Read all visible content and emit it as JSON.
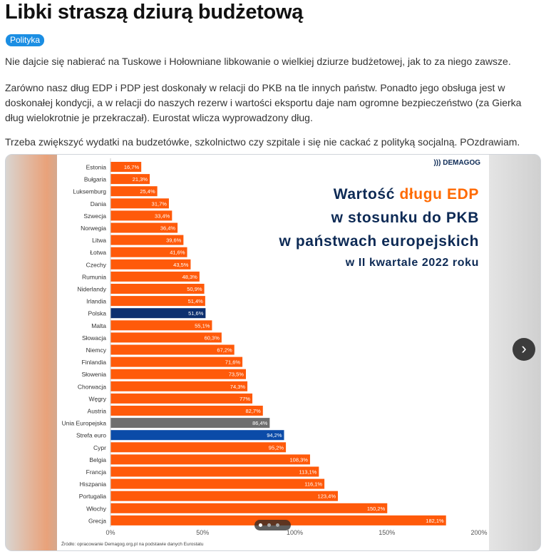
{
  "post": {
    "title": "Libki straszą dziurą budżetową",
    "tag": "Polityka",
    "paragraphs": [
      "Nie dajcie się nabierać na Tuskowe i Hołowniane libkowanie o wielkiej dziurze budżetowej, jak to za niego zawsze.",
      "Zarówno nasz dług EDP i PDP jest doskonały w relacji do PKB na tle innych państw. Ponadto jego obsługa jest w doskonałej kondycji, a w relacji do naszych rezerw i wartości eksportu daje nam ogromne bezpieczeństwo (za Gierka dług wielokrotnie je przekraczał). Eurostat wlicza wyprowadzony dług.",
      "Trzeba zwiększyć wydatki na budzetówke, szkolnictwo czy szpitale i się nie cackać z polityką socjalną. POzdrawiam."
    ]
  },
  "carousel": {
    "next_icon": "chevron-right-icon",
    "dots": 3,
    "active_dot": 0
  },
  "colors": {
    "accent_tag": "#1b8ee3",
    "bar_default": "#ff5a0a",
    "bar_poland": "#0d3070",
    "bar_eu": "#6e6e6e",
    "bar_eurozone": "#0b4ba8",
    "title_navy": "#0d2a55",
    "title_orange": "#ff6a00"
  },
  "chart_data": {
    "type": "bar",
    "orientation": "horizontal",
    "brand": "DEMAGOG",
    "title_lines": [
      [
        "Wartość ",
        "długu EDP"
      ],
      [
        "w stosunku do PKB",
        ""
      ],
      [
        "w państwach europejskich",
        ""
      ],
      [
        "w II kwartale 2022 roku",
        ""
      ]
    ],
    "categories": [
      "Estonia",
      "Bułgaria",
      "Luksemburg",
      "Dania",
      "Szwecja",
      "Norwegia",
      "Litwa",
      "Łotwa",
      "Czechy",
      "Rumunia",
      "Niderlandy",
      "Irlandia",
      "Polska",
      "Malta",
      "Słowacja",
      "Niemcy",
      "Finlandia",
      "Słowenia",
      "Chorwacja",
      "Węgry",
      "Austria",
      "Unia Europejska",
      "Strefa euro",
      "Cypr",
      "Belgia",
      "Francja",
      "Hiszpania",
      "Portugalia",
      "Włochy",
      "Grecja"
    ],
    "values": [
      16.7,
      21.3,
      25.4,
      31.7,
      33.4,
      36.4,
      39.6,
      41.6,
      43.5,
      48.3,
      50.9,
      51.4,
      51.6,
      55.1,
      60.3,
      67.2,
      71.6,
      73.5,
      74.3,
      77,
      82.7,
      86.4,
      94.2,
      95.2,
      108.3,
      113.1,
      116.1,
      123.4,
      150.2,
      182.1
    ],
    "value_labels": [
      "16,7%",
      "21,3%",
      "25,4%",
      "31,7%",
      "33,4%",
      "36,4%",
      "39,6%",
      "41,6%",
      "43,5%",
      "48,3%",
      "50,9%",
      "51,4%",
      "51,6%",
      "55,1%",
      "60,3%",
      "67,2%",
      "71,6%",
      "73,5%",
      "74,3%",
      "77%",
      "82,7%",
      "86,4%",
      "94,2%",
      "95,2%",
      "108,3%",
      "113,1%",
      "116,1%",
      "123,4%",
      "150,2%",
      "182,1%"
    ],
    "highlight": {
      "Polska": "poland",
      "Unia Europejska": "eu",
      "Strefa euro": "eurozone"
    },
    "x_ticks": [
      0,
      50,
      100,
      150,
      200
    ],
    "x_tick_labels": [
      "0%",
      "50%",
      "100%",
      "150%",
      "200%"
    ],
    "xlim": [
      0,
      200
    ],
    "source": "Źródło: opracowanie Demagog.org.pl na podstawie danych Eurostatu"
  }
}
